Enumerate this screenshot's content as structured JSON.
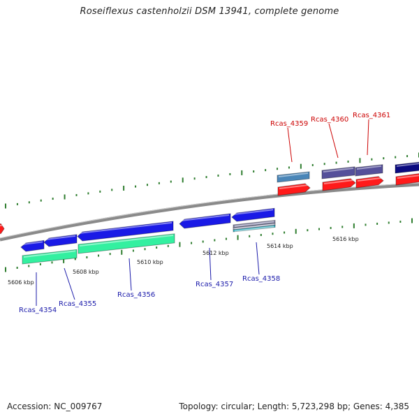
{
  "title": "Roseiflexus castenholzii DSM 13941, complete genome",
  "footer": {
    "accession": "Accession: NC_009767",
    "summary": "Topology: circular; Length: 5,723,298 bp; Genes: 4,385"
  },
  "colors": {
    "backbone": "#8a8a8a",
    "ticks": "#2e7d2e",
    "plus_label": "#cc0000",
    "minus_label": "#1a1aaa",
    "cds_red": "#ff1a1a",
    "cds_blue": "#1a1ae6",
    "cds_green": "#33f0a0",
    "cds_steel": "#4a86b8",
    "cds_slate": "#55509a",
    "cds_navy": "#0b0b80",
    "cds_teal": "#3ab8c8"
  },
  "scale_labels": [
    "5606 kbp",
    "5608 kbp",
    "5610 kbp",
    "5612 kbp",
    "5614 kbp",
    "5616 kbp"
  ],
  "genes": [
    {
      "name": "Rcas_4354",
      "strand": "minus"
    },
    {
      "name": "Rcas_4355",
      "strand": "minus"
    },
    {
      "name": "Rcas_4356",
      "strand": "minus"
    },
    {
      "name": "Rcas_4357",
      "strand": "minus"
    },
    {
      "name": "Rcas_4358",
      "strand": "minus"
    },
    {
      "name": "Rcas_4359",
      "strand": "plus"
    },
    {
      "name": "Rcas_4360",
      "strand": "plus"
    },
    {
      "name": "Rcas_4361",
      "strand": "plus"
    }
  ]
}
